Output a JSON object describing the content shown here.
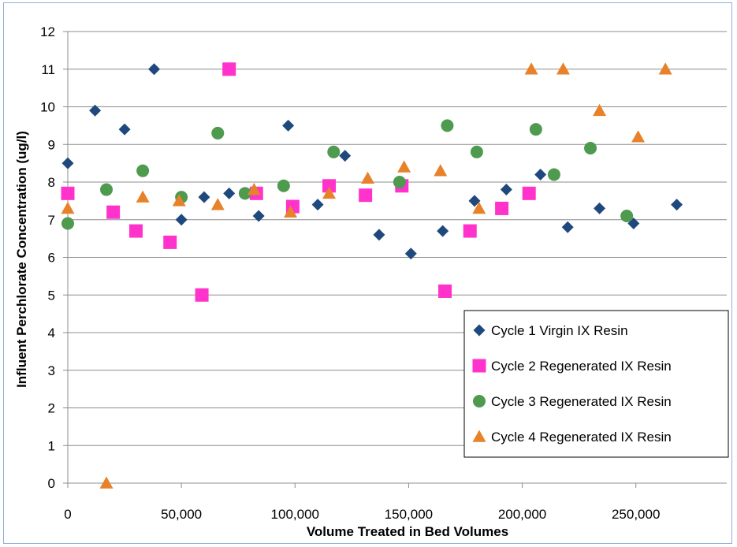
{
  "chart_data": {
    "type": "scatter",
    "title": "",
    "xlabel": "Volume Treated in Bed Volumes",
    "ylabel": "Influent Perchlorate Concentration (ug/l)",
    "xlim": [
      0,
      290000
    ],
    "ylim": [
      0,
      12
    ],
    "xticks": [
      0,
      50000,
      100000,
      150000,
      200000,
      250000
    ],
    "xtick_labels": [
      "0",
      "50,000",
      "100,000",
      "150,000",
      "200,000",
      "250,000"
    ],
    "yticks": [
      0,
      1,
      2,
      3,
      4,
      5,
      6,
      7,
      8,
      9,
      10,
      11,
      12
    ],
    "ytick_labels": [
      "0",
      "1",
      "2",
      "3",
      "4",
      "5",
      "6",
      "7",
      "8",
      "9",
      "10",
      "11",
      "12"
    ],
    "grid": "horizontal",
    "legend_position": "bottom-right",
    "series": [
      {
        "name": "Cycle 1 Virgin IX Resin",
        "marker": "diamond",
        "color": "#1f497d",
        "points": [
          [
            0,
            8.5
          ],
          [
            12000,
            9.9
          ],
          [
            25000,
            9.4
          ],
          [
            38000,
            11.0
          ],
          [
            50000,
            7.0
          ],
          [
            60000,
            7.6
          ],
          [
            71000,
            7.7
          ],
          [
            84000,
            7.1
          ],
          [
            97000,
            9.5
          ],
          [
            110000,
            7.4
          ],
          [
            122000,
            8.7
          ],
          [
            137000,
            6.6
          ],
          [
            151000,
            6.1
          ],
          [
            165000,
            6.7
          ],
          [
            179000,
            7.5
          ],
          [
            193000,
            7.8
          ],
          [
            208000,
            8.2
          ],
          [
            220000,
            6.8
          ],
          [
            234000,
            7.3
          ],
          [
            249000,
            6.9
          ],
          [
            268000,
            7.4
          ]
        ]
      },
      {
        "name": "Cycle 2 Regenerated IX Resin",
        "marker": "square",
        "color": "#ff33cc",
        "points": [
          [
            0,
            7.7
          ],
          [
            20000,
            7.2
          ],
          [
            30000,
            6.7
          ],
          [
            45000,
            6.4
          ],
          [
            59000,
            5.0
          ],
          [
            71000,
            11.0
          ],
          [
            83000,
            7.7
          ],
          [
            99000,
            7.35
          ],
          [
            115000,
            7.9
          ],
          [
            131000,
            7.65
          ],
          [
            147000,
            7.9
          ],
          [
            166000,
            5.1
          ],
          [
            177000,
            6.7
          ],
          [
            191000,
            7.3
          ],
          [
            203000,
            7.7
          ]
        ]
      },
      {
        "name": "Cycle 3 Regenerated IX Resin",
        "marker": "circle",
        "color": "#4e9a4e",
        "points": [
          [
            0,
            6.9
          ],
          [
            17000,
            7.8
          ],
          [
            33000,
            8.3
          ],
          [
            50000,
            7.6
          ],
          [
            66000,
            9.3
          ],
          [
            78000,
            7.7
          ],
          [
            95000,
            7.9
          ],
          [
            117000,
            8.8
          ],
          [
            146000,
            8.0
          ],
          [
            167000,
            9.5
          ],
          [
            180000,
            8.8
          ],
          [
            206000,
            9.4
          ],
          [
            214000,
            8.2
          ],
          [
            230000,
            8.9
          ],
          [
            246000,
            7.1
          ]
        ]
      },
      {
        "name": "Cycle 4 Regenerated IX Resin",
        "marker": "triangle",
        "color": "#e8822a",
        "points": [
          [
            0,
            7.3
          ],
          [
            17000,
            0.0
          ],
          [
            33000,
            7.6
          ],
          [
            49000,
            7.5
          ],
          [
            66000,
            7.4
          ],
          [
            82000,
            7.8
          ],
          [
            98000,
            7.2
          ],
          [
            115000,
            7.7
          ],
          [
            132000,
            8.1
          ],
          [
            148000,
            8.4
          ],
          [
            164000,
            8.3
          ],
          [
            181000,
            7.3
          ],
          [
            204000,
            11.0
          ],
          [
            218000,
            11.0
          ],
          [
            234000,
            9.9
          ],
          [
            251000,
            9.2
          ],
          [
            263000,
            11.0
          ]
        ]
      }
    ]
  }
}
